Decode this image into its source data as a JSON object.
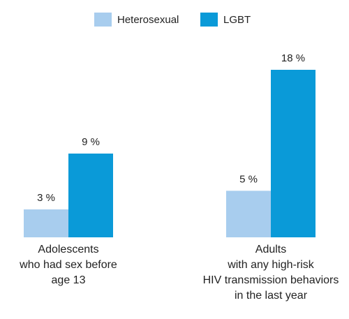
{
  "chart_data": {
    "type": "bar",
    "categories": [
      [
        "Adolescents",
        "who had sex before",
        "age 13"
      ],
      [
        "Adults",
        "with any high-risk",
        "HIV transmission behaviors",
        "in the last year"
      ]
    ],
    "series": [
      {
        "name": "Heterosexual",
        "color": "#a8cdee",
        "values": [
          3,
          5
        ],
        "value_labels": [
          "3 %",
          "5 %"
        ]
      },
      {
        "name": "LGBT",
        "color": "#0a9ad8",
        "values": [
          9,
          18
        ],
        "value_labels": [
          "9 %",
          "18 %"
        ]
      }
    ],
    "legend": "top"
  }
}
